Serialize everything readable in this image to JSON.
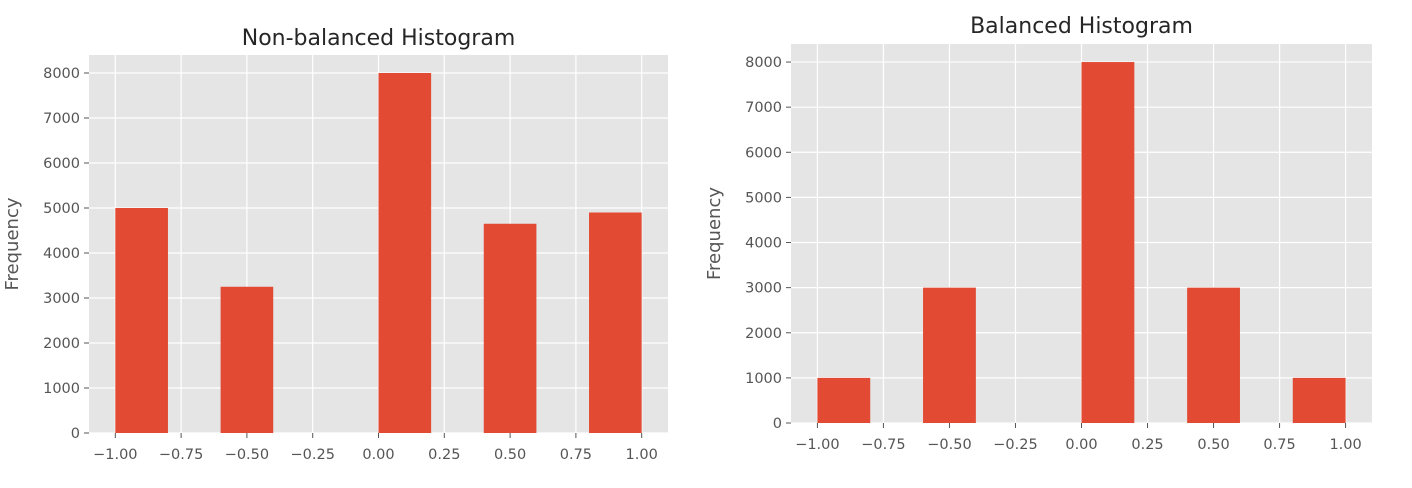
{
  "chart_data": [
    {
      "type": "bar",
      "title": "Non-balanced Histogram",
      "xlabel": "",
      "ylabel": "Frequency",
      "xlim": [
        -1.1,
        1.1
      ],
      "ylim": [
        0,
        8400
      ],
      "xticks": [
        -1.0,
        -0.75,
        -0.5,
        -0.25,
        0.0,
        0.25,
        0.5,
        0.75,
        1.0
      ],
      "xtick_labels": [
        "−1.00",
        "−0.75",
        "−0.50",
        "−0.25",
        "0.00",
        "0.25",
        "0.50",
        "0.75",
        "1.00"
      ],
      "yticks": [
        0,
        1000,
        2000,
        3000,
        4000,
        5000,
        6000,
        7000,
        8000
      ],
      "ytick_labels": [
        "0",
        "1000",
        "2000",
        "3000",
        "4000",
        "5000",
        "6000",
        "7000",
        "8000"
      ],
      "bins": [
        {
          "x0": -1.0,
          "x1": -0.8,
          "value": 5000
        },
        {
          "x0": -0.6,
          "x1": -0.4,
          "value": 3250
        },
        {
          "x0": 0.0,
          "x1": 0.2,
          "value": 8000
        },
        {
          "x0": 0.4,
          "x1": 0.6,
          "value": 4650
        },
        {
          "x0": 0.8,
          "x1": 1.0,
          "value": 4900
        }
      ],
      "grid": true,
      "bar_color": "#e24a33",
      "background_color": "#e5e5e5"
    },
    {
      "type": "bar",
      "title": "Balanced Histogram",
      "xlabel": "",
      "ylabel": "Frequency",
      "xlim": [
        -1.1,
        1.1
      ],
      "ylim": [
        0,
        8400
      ],
      "xticks": [
        -1.0,
        -0.75,
        -0.5,
        -0.25,
        0.0,
        0.25,
        0.5,
        0.75,
        1.0
      ],
      "xtick_labels": [
        "−1.00",
        "−0.75",
        "−0.50",
        "−0.25",
        "0.00",
        "0.25",
        "0.50",
        "0.75",
        "1.00"
      ],
      "yticks": [
        0,
        1000,
        2000,
        3000,
        4000,
        5000,
        6000,
        7000,
        8000
      ],
      "ytick_labels": [
        "0",
        "1000",
        "2000",
        "3000",
        "4000",
        "5000",
        "6000",
        "7000",
        "8000"
      ],
      "bins": [
        {
          "x0": -1.0,
          "x1": -0.8,
          "value": 1000
        },
        {
          "x0": -0.6,
          "x1": -0.4,
          "value": 3000
        },
        {
          "x0": 0.0,
          "x1": 0.2,
          "value": 8000
        },
        {
          "x0": 0.4,
          "x1": 0.6,
          "value": 3000
        },
        {
          "x0": 0.8,
          "x1": 1.0,
          "value": 1000
        }
      ],
      "grid": true,
      "bar_color": "#e24a33",
      "background_color": "#e5e5e5"
    }
  ]
}
